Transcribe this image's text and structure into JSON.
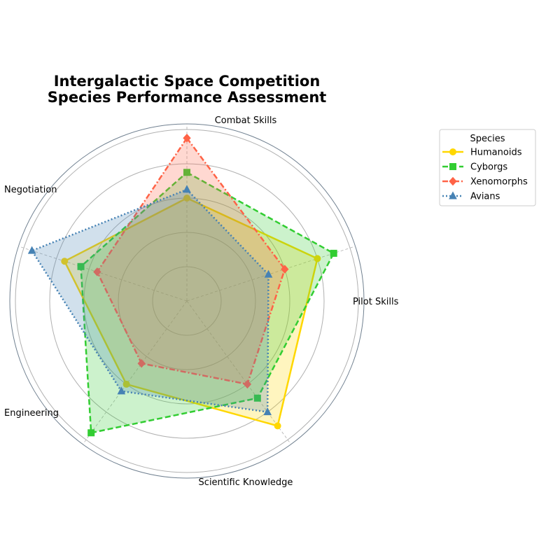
{
  "chart_data": {
    "type": "radar",
    "title_lines": [
      "Intergalactic Space Competition",
      "Species Performance Assessment"
    ],
    "axes": [
      "Combat Skills",
      "Pilot Skills",
      "Scientific Knowledge",
      "Engineering",
      "Negotiation"
    ],
    "rlim": [
      0,
      100
    ],
    "grid_rings": [
      20,
      40,
      60,
      80,
      100
    ],
    "legend": {
      "title": "Species",
      "placement": "upper-right outside"
    },
    "series": [
      {
        "name": "Humanoids",
        "values": [
          60,
          80,
          90,
          60,
          75
        ],
        "color": "#FFD700",
        "line_style": "solid",
        "marker": "circle"
      },
      {
        "name": "Cyborgs",
        "values": [
          75,
          90,
          70,
          95,
          65
        ],
        "color": "#32CD32",
        "line_style": "dashed",
        "marker": "square"
      },
      {
        "name": "Xenomorphs",
        "values": [
          95,
          60,
          60,
          45,
          55
        ],
        "color": "#FF6347",
        "line_style": "dash-dot",
        "marker": "diamond"
      },
      {
        "name": "Avians",
        "values": [
          65,
          50,
          80,
          65,
          95
        ],
        "color": "#4682B4",
        "line_style": "dotted",
        "marker": "triangle"
      }
    ]
  }
}
